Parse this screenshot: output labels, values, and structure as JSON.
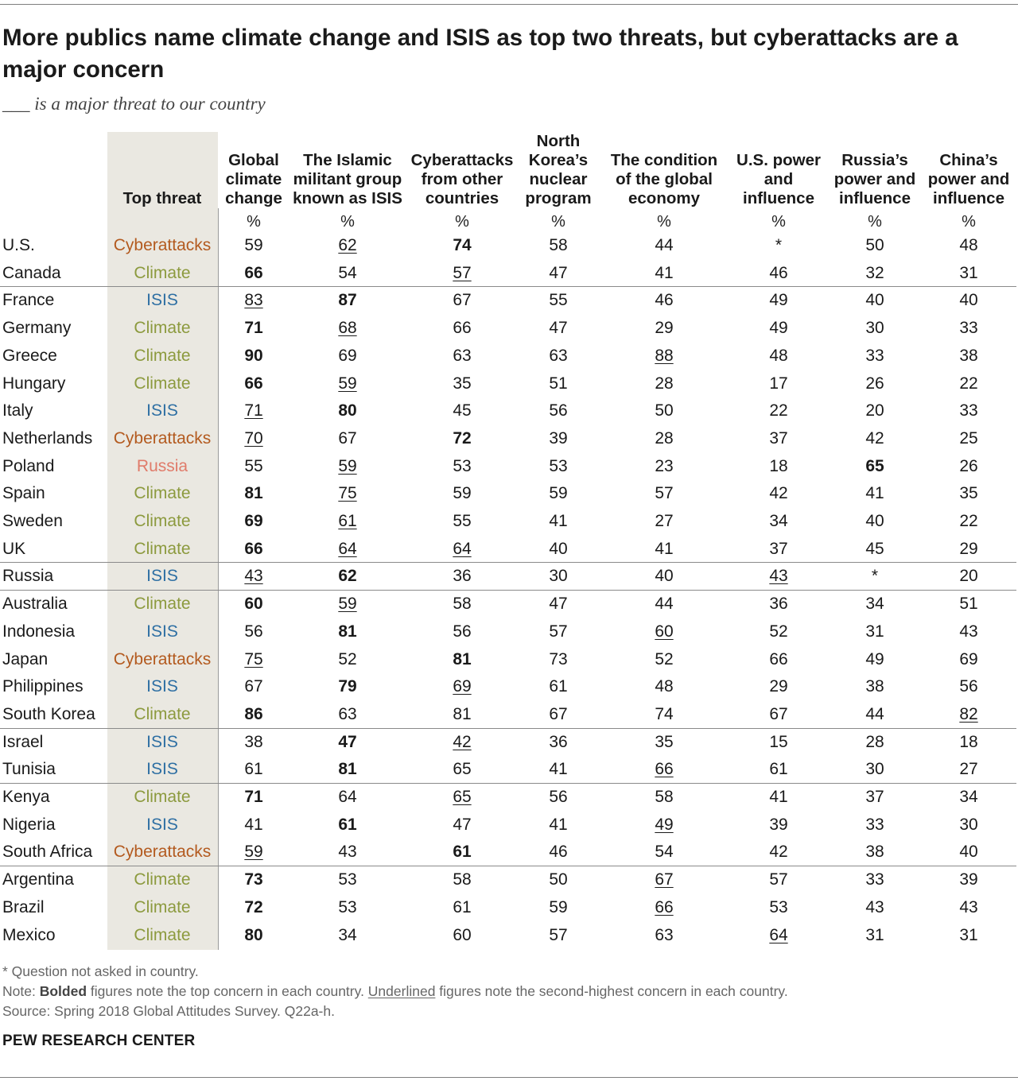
{
  "title": "More publics name climate change and ISIS as top two threats, but cyberattacks are a major concern",
  "subtitle": "___ is a major threat to our country",
  "colors": {
    "Cyberattacks": "#b35a1f",
    "Climate": "#8c9a3e",
    "ISIS": "#2e6fa3",
    "Russia": "#e07b6a",
    "top_threat_bg": "#eae8e1"
  },
  "notes": {
    "asterisk": "* Question not asked in country.",
    "note_prefix": "Note: ",
    "note_bold": "Bolded",
    "note_mid": " figures note the top concern in each country. ",
    "note_under": "Underlined",
    "note_suffix": " figures note the second-highest concern in each country.",
    "source": "Source: Spring 2018 Global Attitudes Survey. Q22a-h."
  },
  "brand": "PEW RESEARCH CENTER",
  "chart_data": {
    "type": "table",
    "top_threat_header": "Top threat",
    "unit_label": "%",
    "columns": [
      "Global climate change",
      "The Islamic militant group known as ISIS",
      "Cyberattacks from other countries",
      "North Korea’s nuclear program",
      "The condition of the global economy",
      "U.S. power and influence",
      "Russia’s power and influence",
      "China’s power and influence"
    ],
    "rows": [
      {
        "country": "U.S.",
        "top": "Cyberattacks",
        "values": [
          "59",
          "62",
          "74",
          "58",
          "44",
          "*",
          "50",
          "48"
        ],
        "bold": 2,
        "under": 1
      },
      {
        "country": "Canada",
        "top": "Climate",
        "values": [
          "66",
          "54",
          "57",
          "47",
          "41",
          "46",
          "32",
          "31"
        ],
        "bold": 0,
        "under": 2
      },
      {
        "country": "France",
        "top": "ISIS",
        "values": [
          "83",
          "87",
          "67",
          "55",
          "46",
          "49",
          "40",
          "40"
        ],
        "bold": 1,
        "under": 0
      },
      {
        "country": "Germany",
        "top": "Climate",
        "values": [
          "71",
          "68",
          "66",
          "47",
          "29",
          "49",
          "30",
          "33"
        ],
        "bold": 0,
        "under": 1
      },
      {
        "country": "Greece",
        "top": "Climate",
        "values": [
          "90",
          "69",
          "63",
          "63",
          "88",
          "48",
          "33",
          "38"
        ],
        "bold": 0,
        "under": 4
      },
      {
        "country": "Hungary",
        "top": "Climate",
        "values": [
          "66",
          "59",
          "35",
          "51",
          "28",
          "17",
          "26",
          "22"
        ],
        "bold": 0,
        "under": 1
      },
      {
        "country": "Italy",
        "top": "ISIS",
        "values": [
          "71",
          "80",
          "45",
          "56",
          "50",
          "22",
          "20",
          "33"
        ],
        "bold": 1,
        "under": 0
      },
      {
        "country": "Netherlands",
        "top": "Cyberattacks",
        "values": [
          "70",
          "67",
          "72",
          "39",
          "28",
          "37",
          "42",
          "25"
        ],
        "bold": 2,
        "under": 0
      },
      {
        "country": "Poland",
        "top": "Russia",
        "values": [
          "55",
          "59",
          "53",
          "53",
          "23",
          "18",
          "65",
          "26"
        ],
        "bold": 6,
        "under": 1
      },
      {
        "country": "Spain",
        "top": "Climate",
        "values": [
          "81",
          "75",
          "59",
          "59",
          "57",
          "42",
          "41",
          "35"
        ],
        "bold": 0,
        "under": 1
      },
      {
        "country": "Sweden",
        "top": "Climate",
        "values": [
          "69",
          "61",
          "55",
          "41",
          "27",
          "34",
          "40",
          "22"
        ],
        "bold": 0,
        "under": 1
      },
      {
        "country": "UK",
        "top": "Climate",
        "values": [
          "66",
          "64",
          "64",
          "40",
          "41",
          "37",
          "45",
          "29"
        ],
        "bold": 0,
        "under": [
          1,
          2
        ]
      },
      {
        "country": "Russia",
        "top": "ISIS",
        "values": [
          "43",
          "62",
          "36",
          "30",
          "40",
          "43",
          "*",
          "20"
        ],
        "bold": 1,
        "under": [
          0,
          5
        ]
      },
      {
        "country": "Australia",
        "top": "Climate",
        "values": [
          "60",
          "59",
          "58",
          "47",
          "44",
          "36",
          "34",
          "51"
        ],
        "bold": 0,
        "under": 1
      },
      {
        "country": "Indonesia",
        "top": "ISIS",
        "values": [
          "56",
          "81",
          "56",
          "57",
          "60",
          "52",
          "31",
          "43"
        ],
        "bold": 1,
        "under": 4
      },
      {
        "country": "Japan",
        "top": "Cyberattacks",
        "values": [
          "75",
          "52",
          "81",
          "73",
          "52",
          "66",
          "49",
          "69"
        ],
        "bold": 2,
        "under": 0
      },
      {
        "country": "Philippines",
        "top": "ISIS",
        "values": [
          "67",
          "79",
          "69",
          "61",
          "48",
          "29",
          "38",
          "56"
        ],
        "bold": 1,
        "under": 2
      },
      {
        "country": "South Korea",
        "top": "Climate",
        "values": [
          "86",
          "63",
          "81",
          "67",
          "74",
          "67",
          "44",
          "82"
        ],
        "bold": 0,
        "under": 7
      },
      {
        "country": "Israel",
        "top": "ISIS",
        "values": [
          "38",
          "47",
          "42",
          "36",
          "35",
          "15",
          "28",
          "18"
        ],
        "bold": 1,
        "under": 2
      },
      {
        "country": "Tunisia",
        "top": "ISIS",
        "values": [
          "61",
          "81",
          "65",
          "41",
          "66",
          "61",
          "30",
          "27"
        ],
        "bold": 1,
        "under": 4
      },
      {
        "country": "Kenya",
        "top": "Climate",
        "values": [
          "71",
          "64",
          "65",
          "56",
          "58",
          "41",
          "37",
          "34"
        ],
        "bold": 0,
        "under": 2
      },
      {
        "country": "Nigeria",
        "top": "ISIS",
        "values": [
          "41",
          "61",
          "47",
          "41",
          "49",
          "39",
          "33",
          "30"
        ],
        "bold": 1,
        "under": 4
      },
      {
        "country": "South Africa",
        "top": "Cyberattacks",
        "values": [
          "59",
          "43",
          "61",
          "46",
          "54",
          "42",
          "38",
          "40"
        ],
        "bold": 2,
        "under": 0
      },
      {
        "country": "Argentina",
        "top": "Climate",
        "values": [
          "73",
          "53",
          "58",
          "50",
          "67",
          "57",
          "33",
          "39"
        ],
        "bold": 0,
        "under": 4
      },
      {
        "country": "Brazil",
        "top": "Climate",
        "values": [
          "72",
          "53",
          "61",
          "59",
          "66",
          "53",
          "43",
          "43"
        ],
        "bold": 0,
        "under": 4
      },
      {
        "country": "Mexico",
        "top": "Climate",
        "values": [
          "80",
          "34",
          "60",
          "57",
          "63",
          "64",
          "31",
          "31"
        ],
        "bold": 0,
        "under": 5
      }
    ],
    "groups_end_after": [
      "Canada",
      "UK",
      "Russia",
      "South Korea",
      "Tunisia",
      "South Africa"
    ]
  }
}
